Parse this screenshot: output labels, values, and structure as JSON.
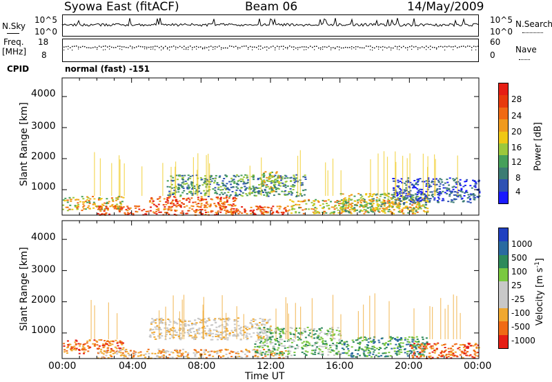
{
  "header": {
    "station": "Syowa East (fitACF)",
    "beam": "Beam 06",
    "date": "14/May/2009"
  },
  "top_panel": {
    "left_label": "N.Sky",
    "right_label": "N.Search",
    "left_ticks": [
      "10^5",
      "10^0"
    ],
    "right_ticks": [
      "10^5",
      "10^0"
    ]
  },
  "freq_panel": {
    "left_label_1": "Freq.",
    "left_label_2": "[MHz]",
    "left_ticks": [
      "18",
      "8"
    ],
    "right_ticks": [
      "60",
      "0"
    ],
    "right_label": "Nave"
  },
  "cpid": {
    "label": "CPID",
    "value": "normal (fast) -151"
  },
  "colors": {
    "power": [
      "#1a1aff",
      "#2f52b3",
      "#3c7c73",
      "#46a05a",
      "#9cc83c",
      "#f0c814",
      "#f09a1e",
      "#f06a14",
      "#e83a0c",
      "#e61e14"
    ],
    "velocity": [
      "#e61e14",
      "#f06a14",
      "#f0a830",
      "#c8c8c8",
      "#c8c8c8",
      "#7ac840",
      "#2e8a5a",
      "#2a6aa0",
      "#2040c0"
    ]
  },
  "chart_data": [
    {
      "type": "heatmap",
      "title": "",
      "xlabel": "Time UT",
      "ylabel": "Slant Range [km]",
      "x_ticks": [
        "00:00",
        "04:00",
        "08:00",
        "12:00",
        "16:00",
        "20:00",
        "00:00"
      ],
      "y_ticks": [
        "1000",
        "2000",
        "3000",
        "4000"
      ],
      "xlim_hours": [
        0,
        24
      ],
      "ylim_km": [
        180,
        4600
      ],
      "colorbar": {
        "label": "Power [dB]",
        "ticks": [
          "4",
          "8",
          "12",
          "16",
          "20",
          "24",
          "28"
        ],
        "range": [
          0,
          30
        ]
      },
      "regions": [
        {
          "t": [
            0.0,
            3.5
          ],
          "range_km": [
            350,
            800
          ],
          "level": "mid-high"
        },
        {
          "t": [
            2.0,
            13.0
          ],
          "range_km": [
            200,
            500
          ],
          "level": "high"
        },
        {
          "t": [
            5.0,
            10.0
          ],
          "range_km": [
            450,
            800
          ],
          "level": "high"
        },
        {
          "t": [
            6.0,
            14.0
          ],
          "range_km": [
            800,
            1500
          ],
          "level": "low-mid"
        },
        {
          "t": [
            11.5,
            12.5
          ],
          "range_km": [
            900,
            1600
          ],
          "level": "mid"
        },
        {
          "t": [
            13.0,
            21.0
          ],
          "range_km": [
            250,
            700
          ],
          "level": "mid-high"
        },
        {
          "t": [
            16.0,
            21.0
          ],
          "range_km": [
            300,
            900
          ],
          "level": "mid"
        },
        {
          "t": [
            19.0,
            24.0
          ],
          "range_km": [
            600,
            1400
          ],
          "level": "low"
        }
      ]
    },
    {
      "type": "heatmap",
      "title": "",
      "xlabel": "Time UT",
      "ylabel": "Slant Range [km]",
      "x_ticks": [
        "00:00",
        "04:00",
        "08:00",
        "12:00",
        "16:00",
        "20:00",
        "00:00"
      ],
      "y_ticks": [
        "1000",
        "2000",
        "3000",
        "4000"
      ],
      "xlim_hours": [
        0,
        24
      ],
      "ylim_km": [
        180,
        4600
      ],
      "colorbar": {
        "label": "Velocity [m s^-1]",
        "ticks": [
          "1000",
          "500",
          "100",
          "25",
          "-25",
          "-100",
          "-500",
          "-1000"
        ],
        "range": [
          -1000,
          1000
        ]
      },
      "regions": [
        {
          "t": [
            0.0,
            3.5
          ],
          "range_km": [
            350,
            800
          ],
          "level": "negative"
        },
        {
          "t": [
            2.0,
            13.0
          ],
          "range_km": [
            200,
            500
          ],
          "level": "negative-small"
        },
        {
          "t": [
            5.0,
            12.0
          ],
          "range_km": [
            800,
            1500
          ],
          "level": "near-zero"
        },
        {
          "t": [
            11.0,
            16.0
          ],
          "range_km": [
            300,
            1200
          ],
          "level": "positive-small"
        },
        {
          "t": [
            16.0,
            21.0
          ],
          "range_km": [
            250,
            900
          ],
          "level": "positive"
        },
        {
          "t": [
            20.0,
            24.0
          ],
          "range_km": [
            200,
            700
          ],
          "level": "negative"
        }
      ]
    }
  ]
}
